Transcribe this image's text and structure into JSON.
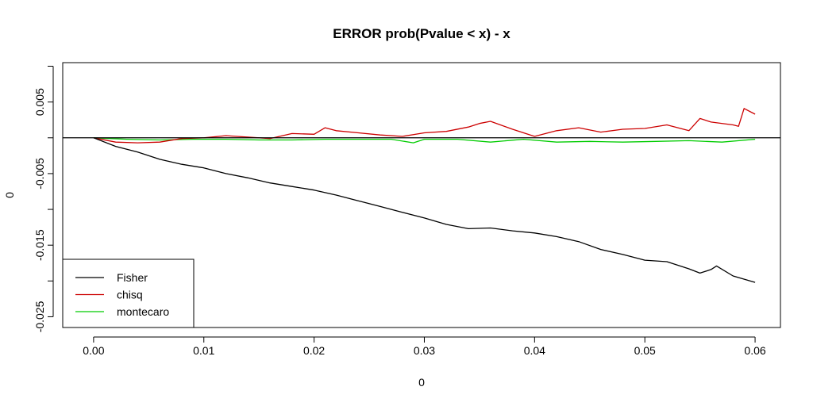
{
  "chart_data": {
    "type": "line",
    "title": "ERROR prob(Pvalue < x) - x",
    "xlabel": "0",
    "ylabel": "0",
    "xlim": [
      -0.0028,
      0.0623
    ],
    "ylim": [
      -0.0265,
      0.0105
    ],
    "xticks": [
      "0.00",
      "0.01",
      "0.02",
      "0.03",
      "0.04",
      "0.05",
      "0.06"
    ],
    "xtick_values": [
      0,
      0.01,
      0.02,
      0.03,
      0.04,
      0.05,
      0.06
    ],
    "yticks": [
      "-0.025",
      "-0.015",
      "-0.005",
      "0.005"
    ],
    "ytick_values": [
      -0.025,
      -0.015,
      -0.005,
      0.005
    ],
    "minor_yticks": [
      -0.02,
      -0.01,
      0,
      0.01
    ],
    "reference_line": {
      "y": 0,
      "color": "#000000"
    },
    "legend_position": "bottom-left",
    "series": [
      {
        "name": "Fisher",
        "color": "#000000",
        "x": [
          0,
          0.002,
          0.004,
          0.006,
          0.008,
          0.01,
          0.012,
          0.014,
          0.016,
          0.018,
          0.02,
          0.022,
          0.024,
          0.026,
          0.028,
          0.03,
          0.032,
          0.034,
          0.036,
          0.038,
          0.04,
          0.042,
          0.044,
          0.046,
          0.048,
          0.05,
          0.052,
          0.054,
          0.055,
          0.056,
          0.0565,
          0.058,
          0.06
        ],
        "y": [
          0,
          -0.0012,
          -0.002,
          -0.003,
          -0.0037,
          -0.0042,
          -0.005,
          -0.0056,
          -0.0063,
          -0.0068,
          -0.0073,
          -0.008,
          -0.0088,
          -0.0096,
          -0.0104,
          -0.0112,
          -0.0121,
          -0.0127,
          -0.0126,
          -0.013,
          -0.0133,
          -0.0138,
          -0.0145,
          -0.0156,
          -0.0163,
          -0.0171,
          -0.0173,
          -0.0183,
          -0.0189,
          -0.0184,
          -0.0179,
          -0.0193,
          -0.0202
        ]
      },
      {
        "name": "chisq",
        "color": "#cc0000",
        "x": [
          0,
          0.002,
          0.004,
          0.006,
          0.008,
          0.01,
          0.012,
          0.014,
          0.016,
          0.018,
          0.02,
          0.021,
          0.022,
          0.024,
          0.026,
          0.028,
          0.03,
          0.032,
          0.034,
          0.035,
          0.036,
          0.038,
          0.04,
          0.042,
          0.044,
          0.046,
          0.048,
          0.05,
          0.052,
          0.054,
          0.055,
          0.056,
          0.058,
          0.0585,
          0.059,
          0.06
        ],
        "y": [
          0,
          -0.0006,
          -0.0007,
          -0.0006,
          -0.0001,
          0.0,
          0.0003,
          0.0001,
          -0.0001,
          0.0006,
          0.0005,
          0.0014,
          0.001,
          0.0007,
          0.0004,
          0.0002,
          0.0007,
          0.0009,
          0.0015,
          0.002,
          0.0023,
          0.0012,
          0.0002,
          0.001,
          0.0014,
          0.0008,
          0.0012,
          0.0013,
          0.0018,
          0.001,
          0.0027,
          0.0022,
          0.0018,
          0.0016,
          0.0041,
          0.0033
        ]
      },
      {
        "name": "montecaro",
        "color": "#00cc00",
        "x": [
          0,
          0.003,
          0.006,
          0.009,
          0.012,
          0.015,
          0.018,
          0.021,
          0.024,
          0.027,
          0.029,
          0.03,
          0.033,
          0.036,
          0.039,
          0.042,
          0.045,
          0.048,
          0.051,
          0.054,
          0.057,
          0.06
        ],
        "y": [
          0,
          -0.0002,
          -0.0003,
          -0.0002,
          -0.0002,
          -0.0003,
          -0.0003,
          -0.0002,
          -0.0002,
          -0.0002,
          -0.0007,
          -0.0002,
          -0.0002,
          -0.0006,
          -0.0002,
          -0.0006,
          -0.0005,
          -0.0006,
          -0.0005,
          -0.0004,
          -0.0006,
          -0.0002
        ]
      }
    ]
  }
}
